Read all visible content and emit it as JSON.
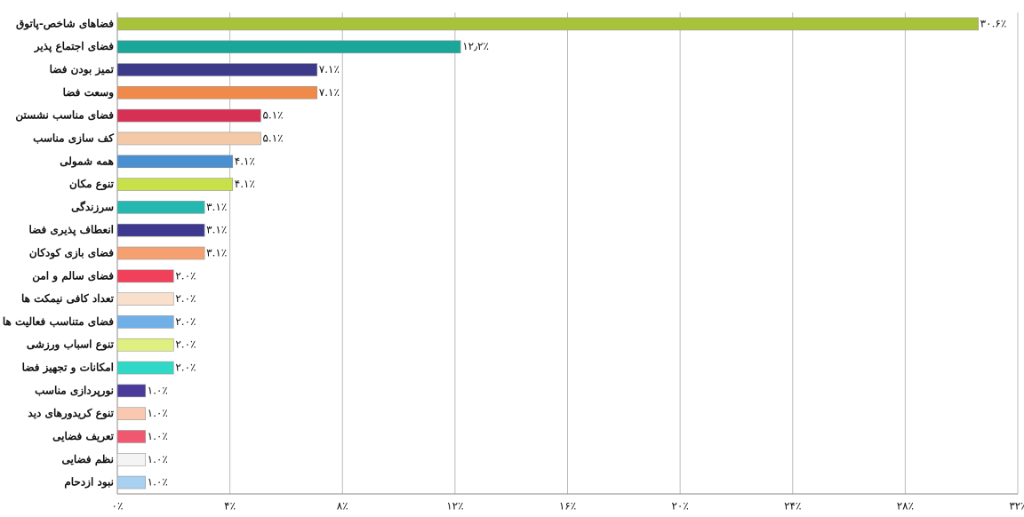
{
  "chart_data": {
    "type": "barh",
    "categories": [
      "فضاهای شاخص-پاتوق",
      "فضای اجتماع پذیر",
      "تمیز بودن فضا",
      "وسعت فضا",
      "فضای مناسب نشستن",
      "کف سازی مناسب",
      "همه شمولی",
      "تنوع مکان",
      "سرزندگی",
      "انعطاف پذیری فضا",
      "فضای بازی کودکان",
      "فضای سالم و امن",
      "تعداد کافی نیمکت ها",
      "فضای متناسب فعالیت ها",
      "تنوع اسباب ورزشی",
      "امکانات و تجهیز فضا",
      "نورپردازی مناسب",
      "تنوع کریدورهای دید",
      "تعریف فضایی",
      "نظم فضایی",
      "نبود ازدحام"
    ],
    "values": [
      30.6,
      12.2,
      7.1,
      7.1,
      5.1,
      5.1,
      4.1,
      4.1,
      3.1,
      3.1,
      3.1,
      2.0,
      2.0,
      2.0,
      2.0,
      2.0,
      1.0,
      1.0,
      1.0,
      1.0,
      1.0
    ],
    "value_labels": [
      "۳۰.۶٪",
      "۱۲٫۲٪",
      "۷.۱٪",
      "۷.۱٪",
      "۵.۱٪",
      "۵.۱٪",
      "۴.۱٪",
      "۴.۱٪",
      "۳.۱٪",
      "۳.۱٪",
      "۳.۱٪",
      "۲.۰٪",
      "۲.۰٪",
      "۲.۰٪",
      "۲.۰٪",
      "۲.۰٪",
      "۱.۰٪",
      "۱.۰٪",
      "۱.۰٪",
      "۱.۰٪",
      "۱.۰٪"
    ],
    "colors": [
      "#a8c23a",
      "#1aa79a",
      "#3d3a8a",
      "#f08a4b",
      "#d63055",
      "#f3c9a8",
      "#4a90d0",
      "#c8e04a",
      "#25b8b0",
      "#3e3890",
      "#f5a070",
      "#f0405a",
      "#f8e0cc",
      "#6fb0e8",
      "#e0f080",
      "#30d8c8",
      "#4a3a9a",
      "#f8c8b0",
      "#f05870",
      "#f4f4f4",
      "#a8d0f0"
    ],
    "xlim": [
      0,
      32
    ],
    "xticks": [
      {
        "value": 0,
        "label": "۰٪"
      },
      {
        "value": 4,
        "label": "۴٪"
      },
      {
        "value": 8,
        "label": "۸٪"
      },
      {
        "value": 12,
        "label": "۱۲٪"
      },
      {
        "value": 16,
        "label": "۱۶٪"
      },
      {
        "value": 20,
        "label": "۲۰٪"
      },
      {
        "value": 24,
        "label": "۲۴٪"
      },
      {
        "value": 28,
        "label": "۲۸٪"
      },
      {
        "value": 32,
        "label": "۳۲٪"
      }
    ],
    "grid": true
  }
}
